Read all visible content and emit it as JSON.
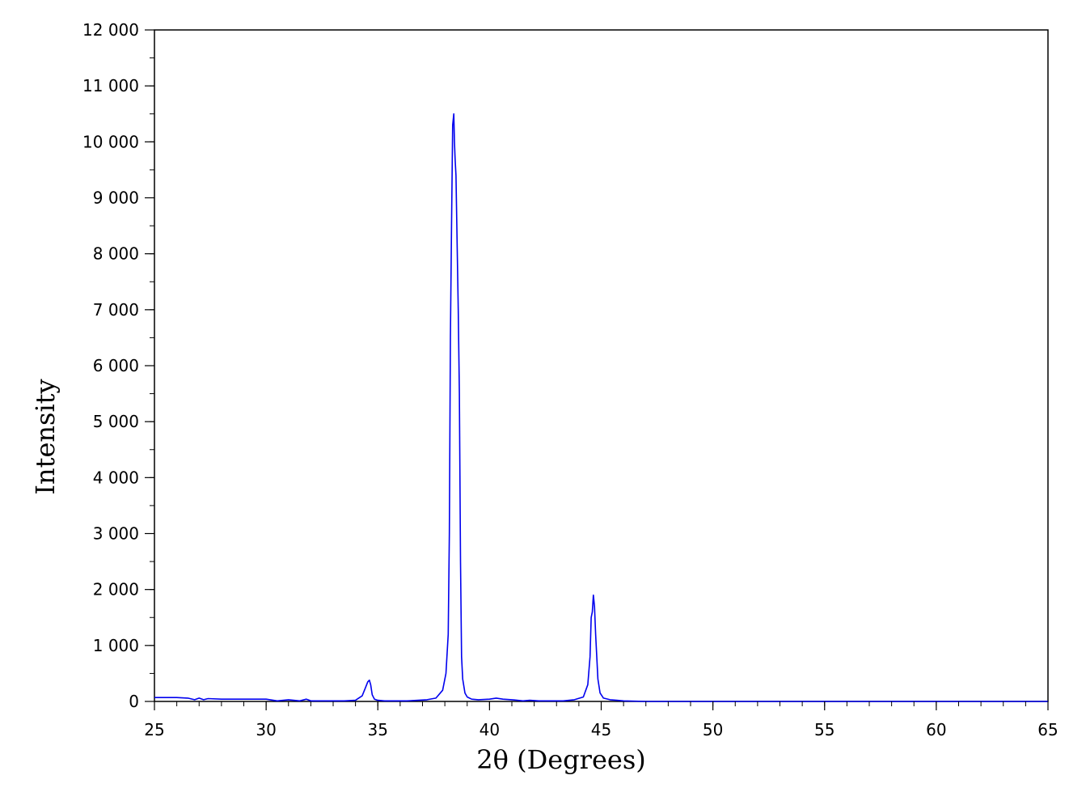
{
  "chart_data": {
    "type": "line",
    "title": "",
    "xlabel": "2θ (Degrees)",
    "ylabel": "Intensity",
    "xlim": [
      25,
      65
    ],
    "ylim": [
      0,
      12000
    ],
    "x_ticks": [
      25,
      30,
      35,
      40,
      45,
      50,
      55,
      60,
      65
    ],
    "x_tick_labels": [
      "25",
      "30",
      "35",
      "40",
      "45",
      "50",
      "55",
      "60",
      "65"
    ],
    "y_ticks": [
      0,
      1000,
      2000,
      3000,
      4000,
      5000,
      6000,
      7000,
      8000,
      9000,
      10000,
      11000,
      12000
    ],
    "y_tick_labels": [
      "0",
      "1 000",
      "2 000",
      "3 000",
      "4 000",
      "5 000",
      "6 000",
      "7 000",
      "8 000",
      "9 000",
      "10 000",
      "11 000",
      "12 000"
    ],
    "x_minor_step": 1,
    "y_minor_step": 500,
    "grid": false,
    "series": [
      {
        "color": "#0000ee",
        "x": [
          25.0,
          25.5,
          26.0,
          26.5,
          26.8,
          27.0,
          27.2,
          27.4,
          28.0,
          29.0,
          30.0,
          30.5,
          31.0,
          31.5,
          31.8,
          32.0,
          32.5,
          33.0,
          33.5,
          34.0,
          34.3,
          34.45,
          34.55,
          34.62,
          34.68,
          34.75,
          34.85,
          35.0,
          35.3,
          35.8,
          36.3,
          36.8,
          37.2,
          37.6,
          37.9,
          38.05,
          38.15,
          38.2,
          38.25,
          38.3,
          38.35,
          38.4,
          38.43,
          38.46,
          38.5,
          38.55,
          38.6,
          38.65,
          38.7,
          38.75,
          38.8,
          38.9,
          39.0,
          39.2,
          39.5,
          40.0,
          40.3,
          40.6,
          41.0,
          41.5,
          41.8,
          42.2,
          42.8,
          43.3,
          43.8,
          44.2,
          44.4,
          44.5,
          44.55,
          44.6,
          44.65,
          44.7,
          44.75,
          44.8,
          44.85,
          44.95,
          45.1,
          45.4,
          45.7,
          46.0,
          47.0,
          50.0,
          55.0,
          60.0,
          65.0
        ],
        "y": [
          70,
          70,
          70,
          60,
          30,
          60,
          30,
          50,
          40,
          40,
          40,
          10,
          30,
          10,
          40,
          10,
          10,
          10,
          10,
          20,
          100,
          250,
          350,
          380,
          300,
          120,
          40,
          20,
          10,
          10,
          10,
          20,
          30,
          60,
          200,
          500,
          1200,
          3000,
          6500,
          8500,
          10300,
          10500,
          10000,
          9700,
          9400,
          8200,
          7000,
          5500,
          2500,
          800,
          400,
          150,
          80,
          40,
          30,
          40,
          60,
          40,
          30,
          10,
          20,
          10,
          10,
          10,
          30,
          80,
          300,
          800,
          1500,
          1600,
          1900,
          1700,
          1200,
          800,
          400,
          150,
          60,
          30,
          20,
          10,
          0,
          0,
          0,
          0,
          0
        ]
      }
    ]
  }
}
